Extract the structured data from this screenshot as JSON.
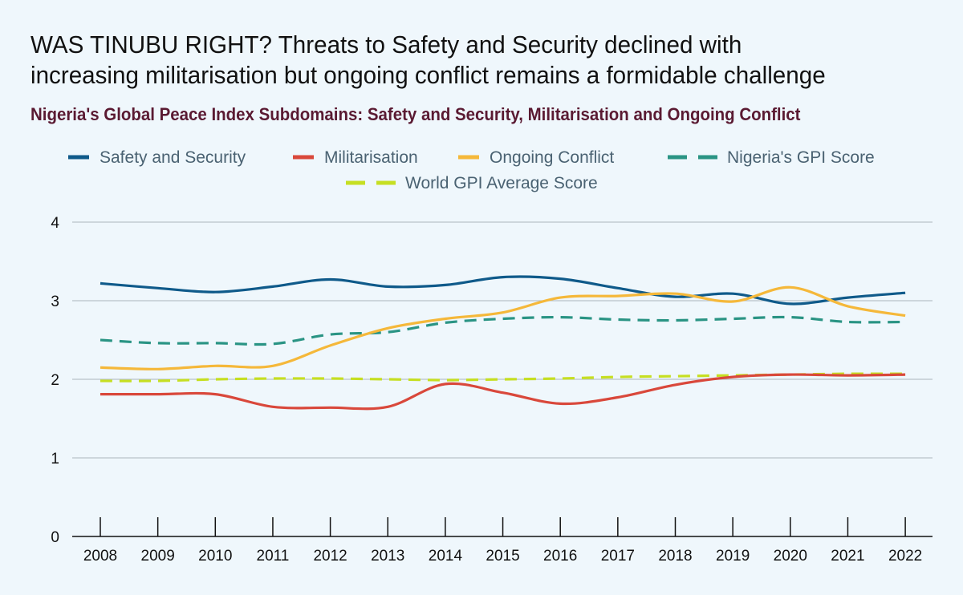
{
  "title_line1": "WAS TINUBU RIGHT? Threats to Safety and Security declined with",
  "title_line2": "increasing militarisation but ongoing conflict remains a formidable challenge",
  "chart_data": {
    "type": "line",
    "subtitle": "Nigeria's Global Peace Index Subdomains: Safety and Security, Militarisation and Ongoing Conflict",
    "xlabel": "",
    "ylabel": "",
    "ylim": [
      0,
      4
    ],
    "yticks": [
      0,
      1,
      2,
      3,
      4
    ],
    "grid": true,
    "legend_position": "top",
    "x": [
      "2008",
      "2009",
      "2010",
      "2011",
      "2012",
      "2013",
      "2014",
      "2015",
      "2016",
      "2017",
      "2018",
      "2019",
      "2020",
      "2021",
      "2022"
    ],
    "series": [
      {
        "name": "Safety and Security",
        "color": "#0f5a8a",
        "dashed": false,
        "values": [
          3.22,
          3.16,
          3.11,
          3.18,
          3.27,
          3.18,
          3.2,
          3.3,
          3.28,
          3.16,
          3.05,
          3.09,
          2.96,
          3.04,
          3.1
        ]
      },
      {
        "name": "Militarisation",
        "color": "#d9483b",
        "dashed": false,
        "values": [
          1.81,
          1.81,
          1.81,
          1.65,
          1.64,
          1.65,
          1.94,
          1.83,
          1.69,
          1.77,
          1.93,
          2.03,
          2.06,
          2.05,
          2.06
        ]
      },
      {
        "name": "Ongoing Conflict",
        "color": "#f5b83a",
        "dashed": false,
        "values": [
          2.15,
          2.13,
          2.17,
          2.17,
          2.43,
          2.65,
          2.77,
          2.85,
          3.04,
          3.06,
          3.09,
          2.99,
          3.17,
          2.93,
          2.81
        ]
      },
      {
        "name": "Nigeria's GPI Score",
        "color": "#2a9484",
        "dashed": true,
        "values": [
          2.5,
          2.46,
          2.46,
          2.45,
          2.57,
          2.6,
          2.72,
          2.77,
          2.79,
          2.76,
          2.75,
          2.77,
          2.79,
          2.73,
          2.73
        ]
      },
      {
        "name": "World GPI Average Score",
        "color": "#c6df22",
        "dashed": true,
        "values": [
          1.98,
          1.98,
          2.0,
          2.01,
          2.01,
          2.0,
          1.99,
          2.0,
          2.01,
          2.03,
          2.04,
          2.05,
          2.06,
          2.07,
          2.07
        ]
      }
    ]
  }
}
